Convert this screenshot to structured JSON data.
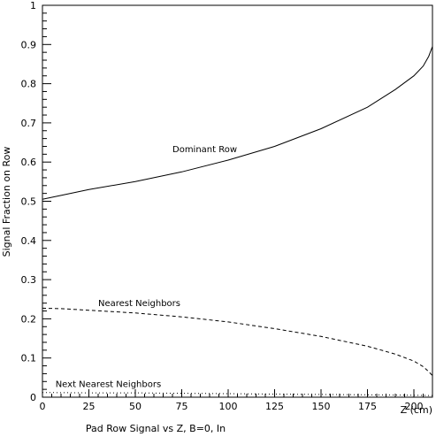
{
  "chart_data": {
    "type": "line",
    "title": "",
    "xlabel": "Pad Row Signal vs Z, B=0, In",
    "ylabel": "Signal Fraction on Row",
    "x_axis_unit_label": "Z (cm)",
    "xlim": [
      0,
      210
    ],
    "ylim": [
      0,
      1
    ],
    "x_ticks": [
      0,
      25,
      50,
      75,
      100,
      125,
      150,
      175,
      200
    ],
    "y_ticks": [
      0,
      0.1,
      0.2,
      0.3,
      0.4,
      0.5,
      0.6,
      0.7,
      0.8,
      0.9,
      1
    ],
    "x_tick_labels": [
      "0",
      "25",
      "50",
      "75",
      "100",
      "125",
      "150",
      "175",
      "200"
    ],
    "y_tick_labels": [
      "0",
      "0.1",
      "0.2",
      "0.3",
      "0.4",
      "0.5",
      "0.6",
      "0.7",
      "0.8",
      "0.9",
      "1"
    ],
    "grid": false,
    "series": [
      {
        "name": "Dominant Row",
        "style": "solid",
        "x": [
          0,
          10,
          25,
          50,
          75,
          100,
          125,
          150,
          175,
          190,
          200,
          205,
          208,
          210
        ],
        "y": [
          0.505,
          0.515,
          0.53,
          0.55,
          0.575,
          0.605,
          0.64,
          0.685,
          0.74,
          0.785,
          0.82,
          0.845,
          0.87,
          0.895
        ]
      },
      {
        "name": "Nearest Neighbors",
        "style": "dashed",
        "x": [
          0,
          10,
          25,
          50,
          75,
          100,
          125,
          150,
          175,
          190,
          200,
          205,
          208,
          210
        ],
        "y": [
          0.227,
          0.226,
          0.222,
          0.215,
          0.205,
          0.192,
          0.175,
          0.155,
          0.13,
          0.11,
          0.092,
          0.078,
          0.065,
          0.055
        ]
      },
      {
        "name": "Next Nearest Neighbors",
        "style": "dotted",
        "x": [
          0,
          25,
          50,
          75,
          100,
          125,
          150,
          175,
          200,
          210
        ],
        "y": [
          0.012,
          0.011,
          0.011,
          0.01,
          0.009,
          0.008,
          0.007,
          0.006,
          0.005,
          0.004
        ]
      }
    ],
    "annotations": [
      {
        "text": "Dominant Row",
        "x": 70,
        "y": 0.625
      },
      {
        "text": "Nearest Neighbors",
        "x": 30,
        "y": 0.232
      },
      {
        "text": "Next Nearest Neighbors",
        "x": 7,
        "y": 0.026
      }
    ]
  }
}
